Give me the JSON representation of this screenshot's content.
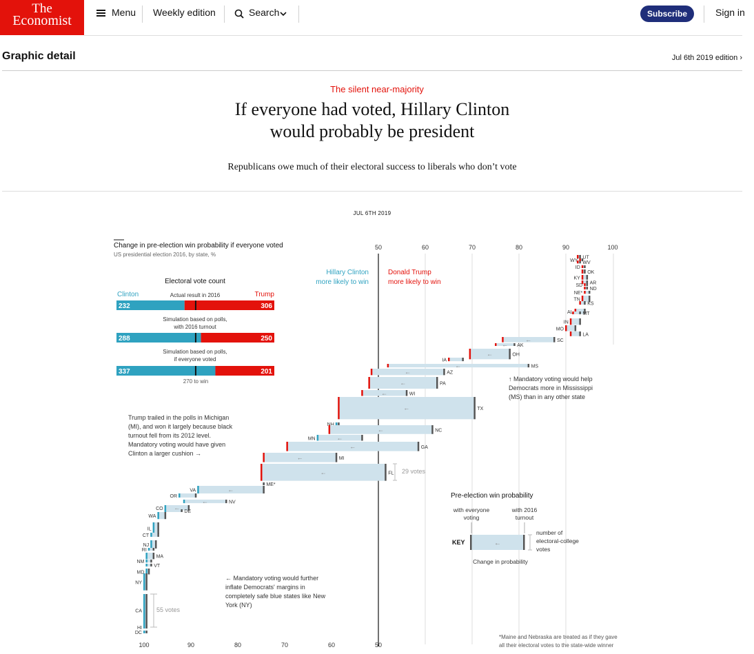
{
  "header": {
    "logo_line1": "The",
    "logo_line2": "Economist",
    "menu_label": "Menu",
    "weekly_label": "Weekly edition",
    "search_label": "Search",
    "subscribe_label": "Subscribe",
    "signin_label": "Sign in"
  },
  "section": {
    "title": "Graphic detail",
    "edition": "Jul 6th 2019 edition"
  },
  "article": {
    "rubric": "The silent near-majority",
    "headline_line1": "If everyone had voted, Hillary Clinton",
    "headline_line2": "would probably be president",
    "standfirst": "Republicans owe much of their electoral success to liberals who don’t vote",
    "date": "JUL 6TH 2019"
  },
  "colors": {
    "clinton": "#2fa2c0",
    "trump": "#e3120b",
    "bar_fill": "#cfe2ec",
    "subscribe": "#1f2e7a",
    "accent_red": "#e3120b",
    "vote_key": "#bbbbbb"
  },
  "chart_data": {
    "type": "bar",
    "title": "Change in pre-election win probability if everyone voted",
    "subtitle": "US presidential election 2016, by state, %",
    "top_axis_ticks": [
      50,
      60,
      70,
      80,
      90,
      100
    ],
    "bottom_axis_ticks": [
      100,
      90,
      80,
      70,
      60,
      50
    ],
    "clinton_label_1": "Hillary Clinton",
    "clinton_label_2": "more likely to win",
    "trump_label_1": "Donald Trump",
    "trump_label_2": "more likely to win",
    "annotations": {
      "michigan": [
        "Trump trailed in the polls in Michigan",
        "(MI), and won it largely because black",
        "turnout fell from its 2012 level.",
        "Mandatory voting would have given",
        "Clinton a larger cushion →"
      ],
      "mississippi": [
        "↑ Mandatory voting would help",
        "Democrats more in Mississippi",
        "(MS) than in any other state"
      ],
      "newyork": [
        "← Mandatory voting would further",
        "inflate Democrats' margins in",
        "completely safe blue states like New",
        "York (NY)"
      ],
      "votes_29": "29 votes",
      "votes_55": "55 votes",
      "footnote": [
        "*Maine and Nebraska are treated as if they gave",
        "all their electoral votes to the state-wide winner"
      ]
    },
    "electoral": {
      "title": "Electoral vote count",
      "clinton_label": "Clinton",
      "trump_label": "Trump",
      "actual_caption": "Actual result in 2016",
      "sim1_caption_1": "Simulation based on polls,",
      "sim1_caption_2": "with 2016 turnout",
      "sim2_caption_1": "Simulation based on polls,",
      "sim2_caption_2": "if everyone voted",
      "win_caption": "270 to win",
      "rows": [
        {
          "clinton": 232,
          "trump": 306
        },
        {
          "clinton": 288,
          "trump": 250
        },
        {
          "clinton": 337,
          "trump": 201
        }
      ]
    },
    "key": {
      "title": "Pre-election win probability",
      "everyone_1": "with everyone",
      "everyone_2": "voting",
      "turnout_1": "with 2016",
      "turnout_2": "turnout",
      "label": "KEY",
      "votes_1": "number of",
      "votes_2": "electoral-college",
      "votes_3": "votes",
      "change": "Change in probability"
    },
    "states": [
      {
        "state": "UT",
        "ev": 6,
        "turnout_2016": 7.0,
        "everyone_voted": 7.5,
        "winner": "Trump"
      },
      {
        "state": "WV",
        "ev": 5,
        "turnout_2016": 7.0,
        "everyone_voted": 7.5,
        "winner": "Trump"
      },
      {
        "state": "WY",
        "ev": 3,
        "turnout_2016": 6.5,
        "everyone_voted": 7.0,
        "winner": "Trump"
      },
      {
        "state": "ID",
        "ev": 4,
        "turnout_2016": 6.0,
        "everyone_voted": 6.5,
        "winner": "Trump"
      },
      {
        "state": "OK",
        "ev": 7,
        "turnout_2016": 6.0,
        "everyone_voted": 6.5,
        "winner": "Trump"
      },
      {
        "state": "KY",
        "ev": 8,
        "turnout_2016": 5.5,
        "everyone_voted": 6.5,
        "winner": "Trump"
      },
      {
        "state": "AR",
        "ev": 6,
        "turnout_2016": 5.5,
        "everyone_voted": 6.5,
        "winner": "Trump"
      },
      {
        "state": "SD",
        "ev": 3,
        "turnout_2016": 5.5,
        "everyone_voted": 6.0,
        "winner": "Trump"
      },
      {
        "state": "ND",
        "ev": 3,
        "turnout_2016": 5.5,
        "everyone_voted": 6.0,
        "winner": "Trump"
      },
      {
        "state": "NE*",
        "ev": 5,
        "turnout_2016": 5.0,
        "everyone_voted": 6.0,
        "winner": "Trump"
      },
      {
        "state": "TN",
        "ev": 11,
        "turnout_2016": 5.0,
        "everyone_voted": 6.5,
        "winner": "Trump"
      },
      {
        "state": "KS",
        "ev": 6,
        "turnout_2016": 6.0,
        "everyone_voted": 7.0,
        "winner": "Trump"
      },
      {
        "state": "AL",
        "ev": 9,
        "turnout_2016": 6.0,
        "everyone_voted": 8.0,
        "winner": "Trump"
      },
      {
        "state": "MT",
        "ev": 3,
        "turnout_2016": 7.0,
        "everyone_voted": 8.5,
        "winner": "Trump"
      },
      {
        "state": "IN",
        "ev": 11,
        "turnout_2016": 7.0,
        "everyone_voted": 9.0,
        "winner": "Trump"
      },
      {
        "state": "MO",
        "ev": 10,
        "turnout_2016": 8.0,
        "everyone_voted": 10.0,
        "winner": "Trump"
      },
      {
        "state": "LA",
        "ev": 8,
        "turnout_2016": 7.0,
        "everyone_voted": 9.0,
        "winner": "Trump"
      },
      {
        "state": "SC",
        "ev": 9,
        "turnout_2016": 12.5,
        "everyone_voted": 23.5,
        "winner": "Trump"
      },
      {
        "state": "AK",
        "ev": 3,
        "turnout_2016": 21.0,
        "everyone_voted": 25.0,
        "winner": "Trump"
      },
      {
        "state": "OH",
        "ev": 18,
        "turnout_2016": 22.0,
        "everyone_voted": 30.5,
        "winner": "Trump"
      },
      {
        "state": "IA",
        "ev": 6,
        "turnout_2016": 32.0,
        "everyone_voted": 35.0,
        "winner": "Trump"
      },
      {
        "state": "MS",
        "ev": 6,
        "turnout_2016": 18.0,
        "everyone_voted": 48.0,
        "winner": "Trump"
      },
      {
        "state": "AZ",
        "ev": 11,
        "turnout_2016": 36.0,
        "everyone_voted": 51.5,
        "winner": "Trump"
      },
      {
        "state": "PA",
        "ev": 20,
        "turnout_2016": 37.5,
        "everyone_voted": 52.0,
        "winner": "Trump"
      },
      {
        "state": "WI",
        "ev": 10,
        "turnout_2016": 44.0,
        "everyone_voted": 53.5,
        "winner": "Trump"
      },
      {
        "state": "TX",
        "ev": 38,
        "turnout_2016": 29.5,
        "everyone_voted": 58.5,
        "winner": "Trump"
      },
      {
        "state": "NH",
        "ev": 4,
        "turnout_2016": 58.5,
        "everyone_voted": 59.0,
        "winner": "Clinton"
      },
      {
        "state": "NC",
        "ev": 15,
        "turnout_2016": 38.5,
        "everyone_voted": 60.5,
        "winner": "Trump"
      },
      {
        "state": "MN",
        "ev": 10,
        "turnout_2016": 53.5,
        "everyone_voted": 63.0,
        "winner": "Clinton"
      },
      {
        "state": "GA",
        "ev": 16,
        "turnout_2016": 41.5,
        "everyone_voted": 69.5,
        "winner": "Trump"
      },
      {
        "state": "MI",
        "ev": 16,
        "turnout_2016": 59.0,
        "everyone_voted": 74.5,
        "winner": "Trump"
      },
      {
        "state": "FL",
        "ev": 29,
        "turnout_2016": 48.5,
        "everyone_voted": 75.0,
        "winner": "Trump"
      },
      {
        "state": "ME*",
        "ev": 4,
        "turnout_2016": 74.5,
        "everyone_voted": 74.5,
        "winner": "Clinton"
      },
      {
        "state": "VA",
        "ev": 13,
        "turnout_2016": 74.5,
        "everyone_voted": 88.5,
        "winner": "Clinton"
      },
      {
        "state": "NV",
        "ev": 6,
        "turnout_2016": 82.5,
        "everyone_voted": 91.5,
        "winner": "Clinton"
      },
      {
        "state": "OR",
        "ev": 7,
        "turnout_2016": 89.0,
        "everyone_voted": 92.5,
        "winner": "Clinton"
      },
      {
        "state": "CO",
        "ev": 9,
        "turnout_2016": 90.5,
        "everyone_voted": 95.5,
        "winner": "Clinton"
      },
      {
        "state": "DE",
        "ev": 3,
        "turnout_2016": 92.0,
        "everyone_voted": 95.5,
        "winner": "Clinton"
      },
      {
        "state": "WA",
        "ev": 12,
        "turnout_2016": 95.5,
        "everyone_voted": 97.0,
        "winner": "Clinton"
      },
      {
        "state": "IL",
        "ev": 20,
        "turnout_2016": 97.0,
        "everyone_voted": 98.0,
        "winner": "Clinton"
      },
      {
        "state": "CT",
        "ev": 7,
        "turnout_2016": 97.0,
        "everyone_voted": 98.5,
        "winner": "Clinton"
      },
      {
        "state": "NJ",
        "ev": 14,
        "turnout_2016": 97.5,
        "everyone_voted": 98.5,
        "winner": "Clinton"
      },
      {
        "state": "RI",
        "ev": 4,
        "turnout_2016": 98.0,
        "everyone_voted": 99.0,
        "winner": "Clinton"
      },
      {
        "state": "MA",
        "ev": 11,
        "turnout_2016": 98.0,
        "everyone_voted": 99.5,
        "winner": "Clinton"
      },
      {
        "state": "NM",
        "ev": 5,
        "turnout_2016": 98.5,
        "everyone_voted": 99.5,
        "winner": "Clinton"
      },
      {
        "state": "VT",
        "ev": 3,
        "turnout_2016": 98.5,
        "everyone_voted": 99.5,
        "winner": "Clinton"
      },
      {
        "state": "MD",
        "ev": 10,
        "turnout_2016": 99.0,
        "everyone_voted": 99.5,
        "winner": "Clinton"
      },
      {
        "state": "NY",
        "ev": 29,
        "turnout_2016": 99.5,
        "everyone_voted": 100,
        "winner": "Clinton"
      },
      {
        "state": "CA",
        "ev": 55,
        "turnout_2016": 99.5,
        "everyone_voted": 100,
        "winner": "Clinton"
      },
      {
        "state": "HI",
        "ev": 4,
        "turnout_2016": 99.5,
        "everyone_voted": 100,
        "winner": "Clinton"
      },
      {
        "state": "DC",
        "ev": 3,
        "turnout_2016": 99.5,
        "everyone_voted": 100,
        "winner": "Clinton"
      }
    ]
  }
}
